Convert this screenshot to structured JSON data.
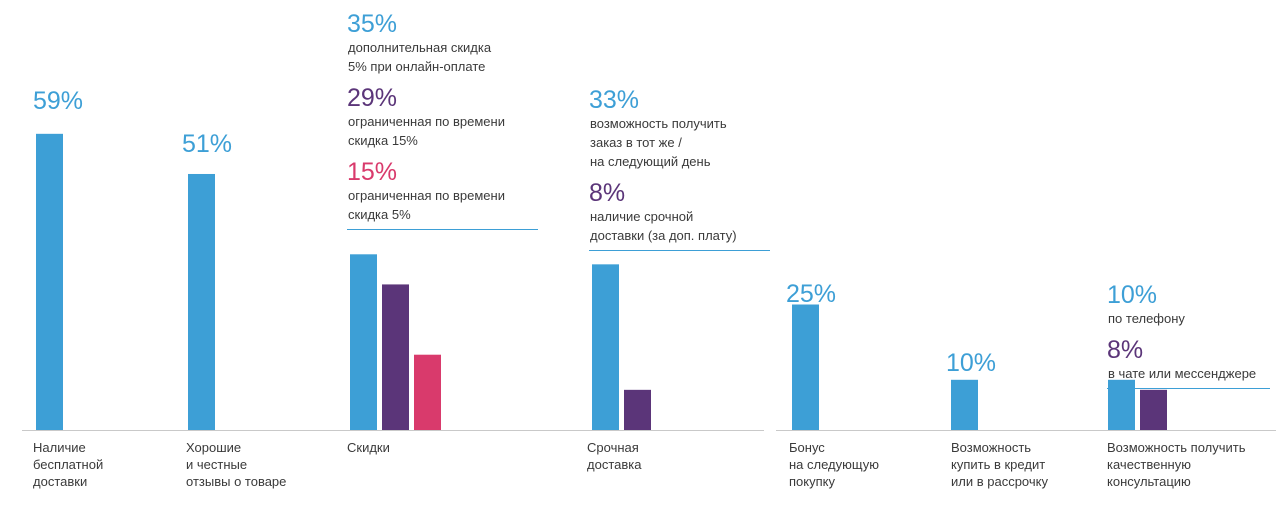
{
  "colors": {
    "blue": "#3d9fd6",
    "purple": "#5b3579",
    "pink": "#d93a6c",
    "baseline": "#c9c9c9",
    "underline": "#3d9fd6"
  },
  "chart_data": {
    "type": "bar",
    "title": "",
    "xlabel": "",
    "ylabel": "",
    "ylim": [
      0,
      60
    ],
    "grid": false,
    "categories": [
      {
        "id": "free-delivery",
        "label_lines": [
          "Наличие",
          "бесплатной",
          "доставки"
        ],
        "bars": [
          {
            "value": 59,
            "color": "blue",
            "label": "59%",
            "desc": []
          }
        ]
      },
      {
        "id": "reviews",
        "label_lines": [
          "Хорошие",
          "и честные",
          "отзывы о товаре"
        ],
        "bars": [
          {
            "value": 51,
            "color": "blue",
            "label": "51%",
            "desc": []
          }
        ]
      },
      {
        "id": "discounts",
        "label_lines": [
          "Скидки"
        ],
        "bars": [
          {
            "value": 35,
            "color": "blue",
            "label": "35%",
            "desc": [
              "дополнительная скидка",
              "5% при онлайн-оплате"
            ]
          },
          {
            "value": 29,
            "color": "purple",
            "label": "29%",
            "desc": [
              "ограниченная по времени",
              "скидка 15%"
            ]
          },
          {
            "value": 15,
            "color": "pink",
            "label": "15%",
            "desc": [
              "ограниченная по времени",
              "скидка 5%"
            ]
          }
        ]
      },
      {
        "id": "express-delivery",
        "label_lines": [
          "Срочная",
          "доставка"
        ],
        "bars": [
          {
            "value": 33,
            "color": "blue",
            "label": "33%",
            "desc": [
              "возможность получить",
              "заказ в тот же /",
              "на следующий день"
            ]
          },
          {
            "value": 8,
            "color": "purple",
            "label": "8%",
            "desc": [
              "наличие срочной",
              "доставки (за доп. плату)"
            ]
          }
        ]
      },
      {
        "id": "bonus",
        "label_lines": [
          "Бонус",
          "на следующую",
          "покупку"
        ],
        "bars": [
          {
            "value": 25,
            "color": "blue",
            "label": "25%",
            "desc": []
          }
        ]
      },
      {
        "id": "credit",
        "label_lines": [
          "Возможность",
          "купить в кредит",
          "или в рассрочку"
        ],
        "bars": [
          {
            "value": 10,
            "color": "blue",
            "label": "10%",
            "desc": []
          }
        ]
      },
      {
        "id": "consultation",
        "label_lines": [
          "Возможность получить",
          "качественную",
          "консультацию"
        ],
        "bars": [
          {
            "value": 10,
            "color": "blue",
            "label": "10%",
            "desc": [
              "по телефону"
            ]
          },
          {
            "value": 8,
            "color": "purple",
            "label": "8%",
            "desc": [
              "в чате или мессенджере"
            ]
          }
        ]
      }
    ]
  }
}
